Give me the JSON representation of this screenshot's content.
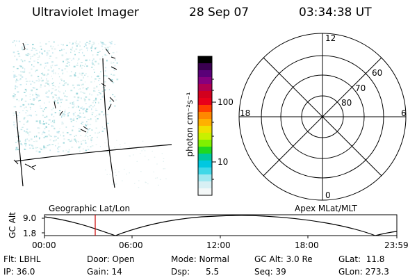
{
  "header": {
    "instrument": "Ultraviolet Imager",
    "date": "28 Sep 07",
    "time": "03:34:38 UT"
  },
  "colorbar": {
    "unit_label": "photon cm⁻²s⁻¹",
    "tick_100": "100",
    "tick_10": "10",
    "colors": [
      "#000000",
      "#3a0050",
      "#5a0078",
      "#86007e",
      "#b00050",
      "#d2001e",
      "#e8001a",
      "#ff4000",
      "#ff8800",
      "#ffb000",
      "#f0e000",
      "#c8f000",
      "#80f000",
      "#20d820",
      "#00c8a0",
      "#00c8e0",
      "#40d8e8",
      "#a0e8f0",
      "#d8f0f4",
      "#f4f8f8"
    ]
  },
  "polar_plot": {
    "labels": {
      "top": "12",
      "bottom": "0",
      "left": "18",
      "right": "6"
    },
    "lat_labels": [
      "60",
      "70",
      "80"
    ]
  },
  "timeline": {
    "left_caption": "Geographic Lat/Lon",
    "right_caption": "Apex MLat/MLT",
    "y_axis_label": "GC Alt",
    "y_ticks": [
      "9.0",
      "1.8"
    ],
    "x_ticks": [
      "00:00",
      "06:00",
      "12:00",
      "18:00",
      "23:59"
    ],
    "marker_color": "#cc0000"
  },
  "info": {
    "flt": "Flt: LBHL",
    "door": "Door: Open",
    "mode": "Mode: Normal",
    "gc_alt": "GC Alt: 3.0 Re",
    "glat": "GLat:  11.8",
    "ip": "IP: 36.0",
    "gain": "Gain: 14",
    "dsp": "Dsp:      5.5",
    "seq": "Seq: 39",
    "glon": "GLon: 273.3"
  }
}
